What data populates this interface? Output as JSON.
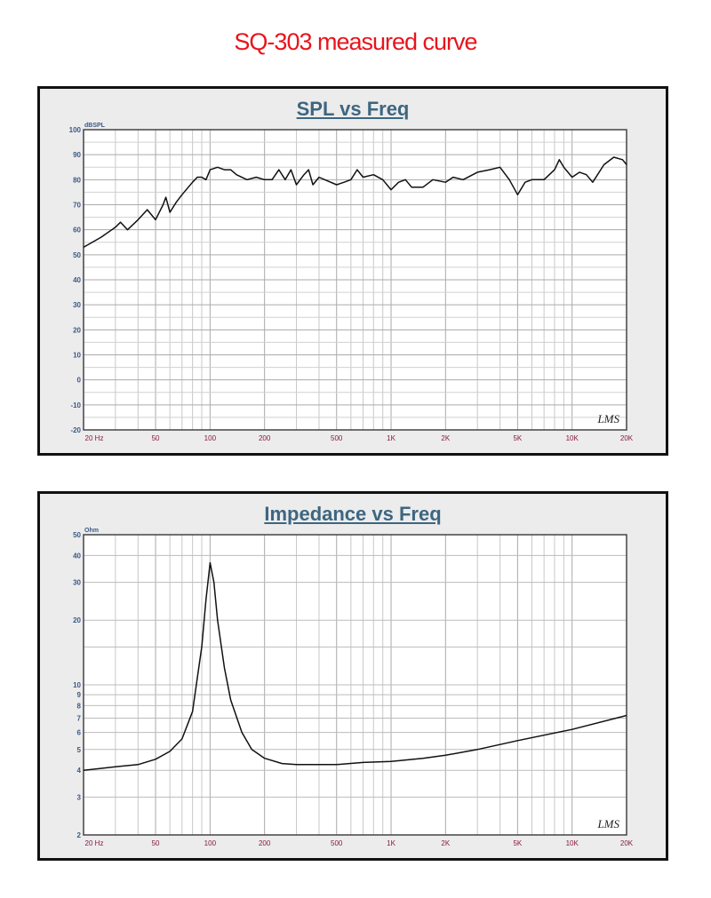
{
  "page_title": "SQ-303 measured curve",
  "chart_data": [
    {
      "type": "line",
      "title": "SPL vs Freq",
      "ylabel": "dBSPL",
      "xscale": "log",
      "xlim": [
        20,
        20000
      ],
      "ylim": [
        -20,
        100
      ],
      "yticks": [
        100,
        90,
        80,
        70,
        60,
        50,
        40,
        30,
        20,
        10,
        0,
        -10,
        -20
      ],
      "xticks": [
        {
          "v": 20,
          "l": "20 Hz"
        },
        {
          "v": 50,
          "l": "50"
        },
        {
          "v": 100,
          "l": "100"
        },
        {
          "v": 200,
          "l": "200"
        },
        {
          "v": 500,
          "l": "500"
        },
        {
          "v": 1000,
          "l": "1K"
        },
        {
          "v": 2000,
          "l": "2K"
        },
        {
          "v": 5000,
          "l": "5K"
        },
        {
          "v": 10000,
          "l": "10K"
        },
        {
          "v": 20000,
          "l": "20K"
        }
      ],
      "watermark": "LMS",
      "grid": true,
      "x": [
        20,
        25,
        30,
        32,
        35,
        40,
        45,
        50,
        55,
        57,
        60,
        65,
        70,
        80,
        85,
        90,
        95,
        100,
        110,
        120,
        130,
        140,
        160,
        180,
        200,
        220,
        240,
        260,
        280,
        300,
        330,
        350,
        370,
        400,
        430,
        500,
        550,
        600,
        650,
        700,
        800,
        900,
        1000,
        1100,
        1200,
        1300,
        1500,
        1700,
        2000,
        2200,
        2500,
        3000,
        3500,
        4000,
        4500,
        5000,
        5500,
        6000,
        7000,
        8000,
        8500,
        9000,
        10000,
        11000,
        12000,
        13000,
        15000,
        17000,
        19000,
        20000
      ],
      "y": [
        53,
        57,
        61,
        63,
        60,
        64,
        68,
        64,
        70,
        73,
        67,
        71,
        74,
        79,
        81,
        81,
        80,
        84,
        85,
        84,
        84,
        82,
        80,
        81,
        80,
        80,
        84,
        80,
        84,
        78,
        82,
        84,
        78,
        81,
        80,
        78,
        79,
        80,
        84,
        81,
        82,
        80,
        76,
        79,
        80,
        77,
        77,
        80,
        79,
        81,
        80,
        83,
        84,
        85,
        80,
        74,
        79,
        80,
        80,
        84,
        88,
        85,
        81,
        83,
        82,
        79,
        86,
        89,
        88,
        86
      ]
    },
    {
      "type": "line",
      "title": "Impedance vs Freq",
      "ylabel": "Ohm",
      "xscale": "log",
      "yscale": "log",
      "xlim": [
        20,
        20000
      ],
      "ylim": [
        2,
        50
      ],
      "yticks": [
        50,
        40,
        30,
        20,
        10,
        9,
        8,
        7,
        6,
        5,
        4,
        3,
        2
      ],
      "xticks": [
        {
          "v": 20,
          "l": "20 Hz"
        },
        {
          "v": 50,
          "l": "50"
        },
        {
          "v": 100,
          "l": "100"
        },
        {
          "v": 200,
          "l": "200"
        },
        {
          "v": 500,
          "l": "500"
        },
        {
          "v": 1000,
          "l": "1K"
        },
        {
          "v": 2000,
          "l": "2K"
        },
        {
          "v": 5000,
          "l": "5K"
        },
        {
          "v": 10000,
          "l": "10K"
        },
        {
          "v": 20000,
          "l": "20K"
        }
      ],
      "watermark": "LMS",
      "grid": true,
      "x": [
        20,
        30,
        40,
        50,
        60,
        70,
        80,
        90,
        95,
        100,
        105,
        110,
        120,
        130,
        150,
        170,
        200,
        250,
        300,
        500,
        700,
        1000,
        1500,
        2000,
        3000,
        5000,
        10000,
        20000
      ],
      "y": [
        4.0,
        4.15,
        4.25,
        4.5,
        4.9,
        5.6,
        7.5,
        15,
        25,
        37,
        30,
        20,
        12,
        8.5,
        6,
        5,
        4.55,
        4.3,
        4.25,
        4.25,
        4.35,
        4.4,
        4.55,
        4.7,
        5.0,
        5.5,
        6.2,
        7.2
      ]
    }
  ]
}
